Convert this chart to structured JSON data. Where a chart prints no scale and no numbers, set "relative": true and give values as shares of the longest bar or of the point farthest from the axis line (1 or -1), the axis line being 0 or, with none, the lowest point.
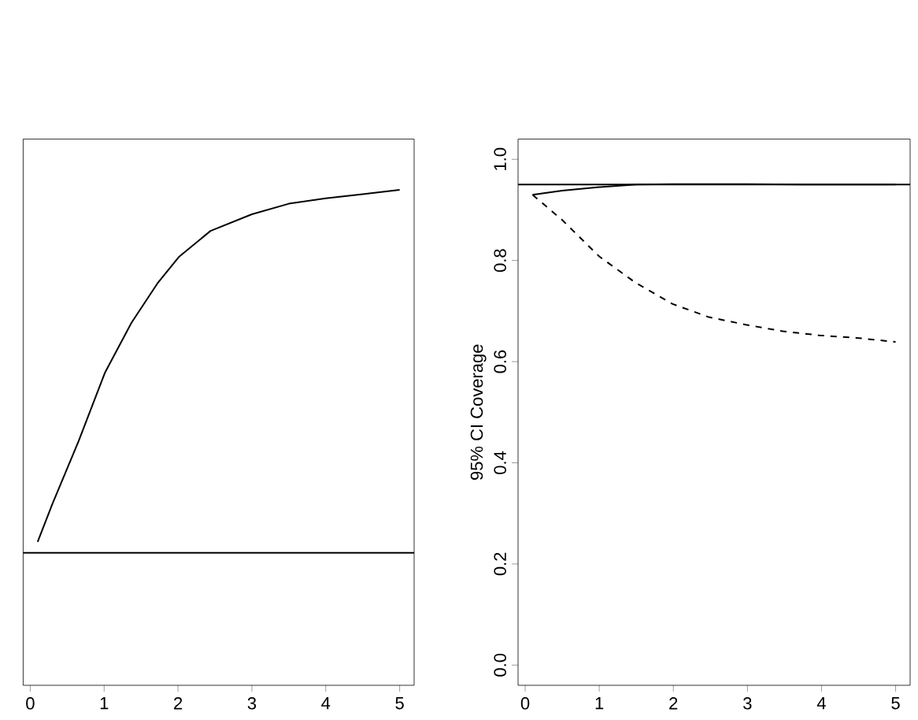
{
  "chart_data": [
    {
      "type": "line",
      "relative": true,
      "xlim": [
        -0.096,
        5.196
      ],
      "xticks": [
        0,
        1,
        2,
        3,
        4,
        5
      ],
      "series": [
        {
          "color": "#000000",
          "line_style": "solid",
          "x": [
            0.1,
            0.3,
            0.655,
            1.01,
            1.37,
            1.72,
            2.01,
            2.44,
            3.0,
            3.5,
            4.0,
            4.5,
            5.0
          ],
          "values": [
            0.03,
            0.135,
            0.308,
            0.496,
            0.634,
            0.742,
            0.815,
            0.887,
            0.933,
            0.962,
            0.977,
            0.988,
            1.0
          ]
        }
      ],
      "ref_lines": [
        {
          "axis": "y",
          "value": 0,
          "color": "#000000"
        }
      ]
    },
    {
      "type": "line",
      "ylabel": "95% CI Coverage",
      "xlim": [
        -0.096,
        5.196
      ],
      "ylim": [
        -0.04,
        1.04
      ],
      "xticks": [
        0,
        1,
        2,
        3,
        4,
        5
      ],
      "yticks": [
        {
          "value": 0,
          "label": "0.0"
        },
        0.2,
        0.4,
        0.6,
        0.8,
        {
          "value": 1,
          "label": "1.0"
        }
      ],
      "series": [
        {
          "color": "#000000",
          "line_style": "solid",
          "x": [
            0.1,
            0.5,
            1.0,
            1.5,
            2.0,
            3.0,
            4.0,
            5.0
          ],
          "values": [
            0.93,
            0.938,
            0.945,
            0.95,
            0.951,
            0.951,
            0.95,
            0.95
          ]
        },
        {
          "color": "#000000",
          "line_style": "dashed",
          "x": [
            0.1,
            0.5,
            1.0,
            1.49,
            1.99,
            2.48,
            2.98,
            3.48,
            3.97,
            4.47,
            5.0
          ],
          "values": [
            0.93,
            0.88,
            0.808,
            0.756,
            0.714,
            0.688,
            0.673,
            0.66,
            0.652,
            0.647,
            0.639
          ]
        }
      ],
      "ref_lines": [
        {
          "axis": "y",
          "value": 0.95,
          "color": "#000000"
        }
      ]
    }
  ]
}
